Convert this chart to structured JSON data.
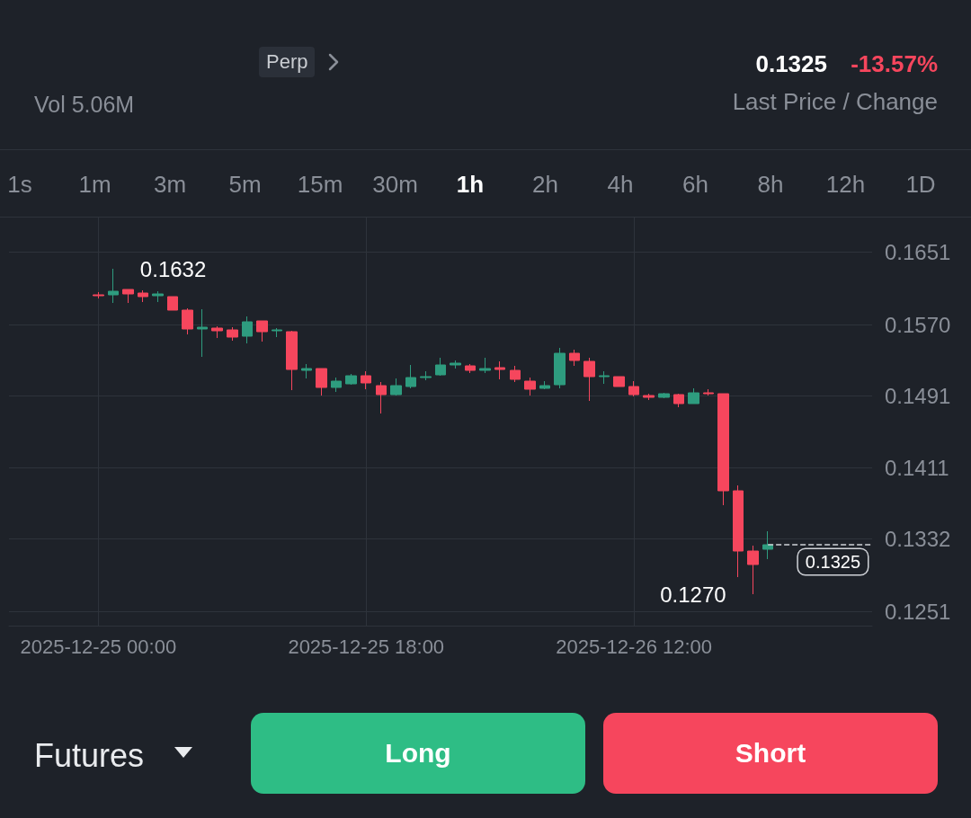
{
  "chart_data": {
    "type": "candlestick",
    "x": [
      "2025-12-25T00:00",
      "2025-12-25T01:00",
      "2025-12-25T02:00",
      "2025-12-25T03:00",
      "2025-12-25T04:00",
      "2025-12-25T05:00",
      "2025-12-25T06:00",
      "2025-12-25T07:00",
      "2025-12-25T08:00",
      "2025-12-25T09:00",
      "2025-12-25T10:00",
      "2025-12-25T11:00",
      "2025-12-25T12:00",
      "2025-12-25T13:00",
      "2025-12-25T14:00",
      "2025-12-25T15:00",
      "2025-12-25T16:00",
      "2025-12-25T17:00",
      "2025-12-25T18:00",
      "2025-12-25T19:00",
      "2025-12-25T20:00",
      "2025-12-25T21:00",
      "2025-12-25T22:00",
      "2025-12-25T23:00",
      "2025-12-26T00:00",
      "2025-12-26T01:00",
      "2025-12-26T02:00",
      "2025-12-26T03:00",
      "2025-12-26T04:00",
      "2025-12-26T05:00",
      "2025-12-26T06:00",
      "2025-12-26T07:00",
      "2025-12-26T08:00",
      "2025-12-26T09:00",
      "2025-12-26T10:00",
      "2025-12-26T11:00",
      "2025-12-26T12:00",
      "2025-12-26T13:00",
      "2025-12-26T14:00",
      "2025-12-26T15:00",
      "2025-12-26T16:00",
      "2025-12-26T17:00",
      "2025-12-26T18:00",
      "2025-12-26T19:00",
      "2025-12-26T20:00",
      "2025-12-26T21:00"
    ],
    "ohlc": [
      [
        0.1603,
        0.1606,
        0.1599,
        0.1602
      ],
      [
        0.1603,
        0.1632,
        0.1594,
        0.1607
      ],
      [
        0.1609,
        0.1609,
        0.1594,
        0.1604
      ],
      [
        0.1605,
        0.1608,
        0.1595,
        0.1601
      ],
      [
        0.1602,
        0.1607,
        0.1595,
        0.1604
      ],
      [
        0.1601,
        0.1601,
        0.1586,
        0.1586
      ],
      [
        0.1586,
        0.1588,
        0.1559,
        0.1565
      ],
      [
        0.1565,
        0.1587,
        0.1534,
        0.1567
      ],
      [
        0.1566,
        0.1568,
        0.1555,
        0.1563
      ],
      [
        0.1564,
        0.1567,
        0.1552,
        0.1556
      ],
      [
        0.1557,
        0.1579,
        0.1549,
        0.1573
      ],
      [
        0.1574,
        0.1574,
        0.1551,
        0.1562
      ],
      [
        0.1563,
        0.1566,
        0.1556,
        0.1564
      ],
      [
        0.1562,
        0.1563,
        0.1497,
        0.152
      ],
      [
        0.1519,
        0.1526,
        0.151,
        0.1521
      ],
      [
        0.1521,
        0.1521,
        0.1491,
        0.15
      ],
      [
        0.15,
        0.1511,
        0.1495,
        0.1507
      ],
      [
        0.1504,
        0.1515,
        0.1503,
        0.1513
      ],
      [
        0.1513,
        0.1518,
        0.1498,
        0.1505
      ],
      [
        0.1502,
        0.1506,
        0.1471,
        0.1492
      ],
      [
        0.1492,
        0.151,
        0.1491,
        0.1502
      ],
      [
        0.1501,
        0.1525,
        0.1499,
        0.1511
      ],
      [
        0.1511,
        0.1518,
        0.1508,
        0.1512
      ],
      [
        0.1514,
        0.1533,
        0.1513,
        0.1525
      ],
      [
        0.1525,
        0.153,
        0.1521,
        0.1527
      ],
      [
        0.1524,
        0.1526,
        0.1516,
        0.1519
      ],
      [
        0.1519,
        0.1533,
        0.1516,
        0.1521
      ],
      [
        0.1522,
        0.1529,
        0.1509,
        0.152
      ],
      [
        0.1519,
        0.1524,
        0.1506,
        0.1509
      ],
      [
        0.1507,
        0.1511,
        0.1491,
        0.1498
      ],
      [
        0.1499,
        0.1507,
        0.1498,
        0.1502
      ],
      [
        0.1503,
        0.1544,
        0.1499,
        0.1538
      ],
      [
        0.1538,
        0.1542,
        0.1524,
        0.153
      ],
      [
        0.1529,
        0.1533,
        0.1485,
        0.1512
      ],
      [
        0.1512,
        0.1518,
        0.1504,
        0.1513
      ],
      [
        0.1512,
        0.1512,
        0.1501,
        0.1501
      ],
      [
        0.1501,
        0.1507,
        0.149,
        0.1492
      ],
      [
        0.1491,
        0.1493,
        0.1486,
        0.1489
      ],
      [
        0.1489,
        0.1494,
        0.1488,
        0.1493
      ],
      [
        0.1492,
        0.1493,
        0.1478,
        0.1482
      ],
      [
        0.1482,
        0.1499,
        0.1482,
        0.1494
      ],
      [
        0.1494,
        0.1498,
        0.1491,
        0.1493
      ],
      [
        0.1493,
        0.1493,
        0.1369,
        0.1385
      ],
      [
        0.1385,
        0.1391,
        0.1289,
        0.1318
      ],
      [
        0.1318,
        0.1324,
        0.127,
        0.1303
      ],
      [
        0.132,
        0.134,
        0.1309,
        0.1325
      ]
    ],
    "colors": [
      "#f6465d",
      "#2e9c7f",
      "#f6465d",
      "#f6465d",
      "#2e9c7f",
      "#f6465d",
      "#f6465d",
      "#2e9c7f",
      "#f6465d",
      "#f6465d",
      "#2e9c7f",
      "#f6465d",
      "#2e9c7f",
      "#f6465d",
      "#2e9c7f",
      "#f6465d",
      "#2e9c7f",
      "#2e9c7f",
      "#f6465d",
      "#f6465d",
      "#2e9c7f",
      "#2e9c7f",
      "#2e9c7f",
      "#2e9c7f",
      "#2e9c7f",
      "#f6465d",
      "#2e9c7f",
      "#f6465d",
      "#f6465d",
      "#f6465d",
      "#2e9c7f",
      "#2e9c7f",
      "#f6465d",
      "#f6465d",
      "#2e9c7f",
      "#f6465d",
      "#f6465d",
      "#f6465d",
      "#2e9c7f",
      "#f6465d",
      "#2e9c7f",
      "#f6465d",
      "#f6465d",
      "#f6465d",
      "#f6465d",
      "#2e9c7f"
    ],
    "xlim": [
      "2025-12-24T18:00",
      "2025-12-27T04:00"
    ],
    "xticks": [
      {
        "value": "2025-12-25T00:00",
        "label": "2025-12-25 00:00"
      },
      {
        "value": "2025-12-25T18:00",
        "label": "2025-12-25 18:00"
      },
      {
        "value": "2025-12-26T12:00",
        "label": "2025-12-26 12:00"
      }
    ],
    "ylim": [
      0.1235,
      0.1689
    ],
    "yticks": [
      0.1251,
      0.1332,
      0.1411,
      0.1491,
      {
        "value": 0.157,
        "label": "0.1570"
      },
      0.1651
    ],
    "grid": true,
    "ref_lines": [
      {
        "axis": "y",
        "value": 0.1325,
        "label": "0.1325",
        "line_style": "dashed",
        "color": "#d0d3d8"
      }
    ],
    "annotations": [
      "Perp",
      "Vol 5.06M",
      "0.1325",
      "-13.57%",
      "Last Price / Change",
      "1s",
      "1m",
      "3m",
      "5m",
      "15m",
      "30m",
      "1h",
      "2h",
      "4h",
      "6h",
      "8h",
      "12h",
      "1D",
      "Futures",
      "Long",
      "Short",
      {
        "text": "0.1632",
        "x": "2025-12-25T01:00",
        "y": 0.1632
      },
      {
        "text": "0.1270",
        "x": "2025-12-26T20:00",
        "y": 0.127
      }
    ]
  }
}
